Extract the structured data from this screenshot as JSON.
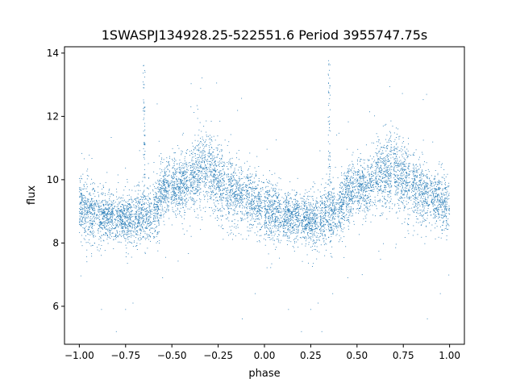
{
  "chart_data": {
    "type": "scatter",
    "title": "1SWASPJ134928.25-522551.6 Period 3955747.75s",
    "xlabel": "phase",
    "ylabel": "flux",
    "xlim": [
      -1.08,
      1.08
    ],
    "ylim": [
      4.8,
      14.2
    ],
    "xticks": [
      -1.0,
      -0.75,
      -0.5,
      -0.25,
      0.0,
      0.25,
      0.5,
      0.75,
      1.0
    ],
    "xtick_labels": [
      "−1.00",
      "−0.75",
      "−0.50",
      "−0.25",
      "0.00",
      "0.25",
      "0.50",
      "0.75",
      "1.00"
    ],
    "yticks": [
      6,
      8,
      10,
      12,
      14
    ],
    "ytick_labels": [
      "6",
      "8",
      "10",
      "12",
      "14"
    ],
    "grid": false,
    "legend": "none",
    "marker_color": "#1f77b4",
    "series": [
      {
        "phase_range": [
          -1.0,
          1.0
        ],
        "profile": {
          "phase": [
            0.0,
            0.05,
            0.1,
            0.15,
            0.2,
            0.25,
            0.3,
            0.35,
            0.4,
            0.45,
            0.5,
            0.55,
            0.6,
            0.65,
            0.7,
            0.75,
            0.8,
            0.85,
            0.9,
            0.95,
            1.0
          ],
          "flux_mean": [
            9.1,
            9.0,
            8.9,
            8.85,
            8.8,
            8.75,
            8.75,
            8.9,
            9.0,
            9.6,
            9.8,
            9.7,
            10.0,
            10.3,
            10.4,
            10.0,
            9.8,
            9.6,
            9.5,
            9.3,
            9.1
          ],
          "flux_spread": [
            0.6,
            0.6,
            0.55,
            0.5,
            0.5,
            0.5,
            0.55,
            0.6,
            0.6,
            0.6,
            0.55,
            0.6,
            0.7,
            0.8,
            0.8,
            0.75,
            0.7,
            0.65,
            0.6,
            0.6,
            0.6
          ]
        },
        "spikes": [
          {
            "phase": -0.65,
            "flux_max": 13.8
          },
          {
            "phase": 0.35,
            "flux_max": 13.8
          }
        ],
        "outliers": [
          {
            "x": -0.88,
            "y": 5.9
          },
          {
            "x": -0.8,
            "y": 5.2
          },
          {
            "x": -0.75,
            "y": 5.9
          },
          {
            "x": -0.71,
            "y": 6.1
          },
          {
            "x": -0.55,
            "y": 6.9
          },
          {
            "x": -0.12,
            "y": 5.6
          },
          {
            "x": 0.13,
            "y": 5.9
          },
          {
            "x": 0.2,
            "y": 5.2
          },
          {
            "x": 0.25,
            "y": 5.9
          },
          {
            "x": 0.29,
            "y": 6.1
          },
          {
            "x": 0.31,
            "y": 5.2
          },
          {
            "x": 0.45,
            "y": 6.9
          },
          {
            "x": 0.88,
            "y": 5.6
          },
          {
            "x": 0.95,
            "y": 6.4
          },
          {
            "x": -0.05,
            "y": 6.4
          }
        ]
      }
    ]
  }
}
